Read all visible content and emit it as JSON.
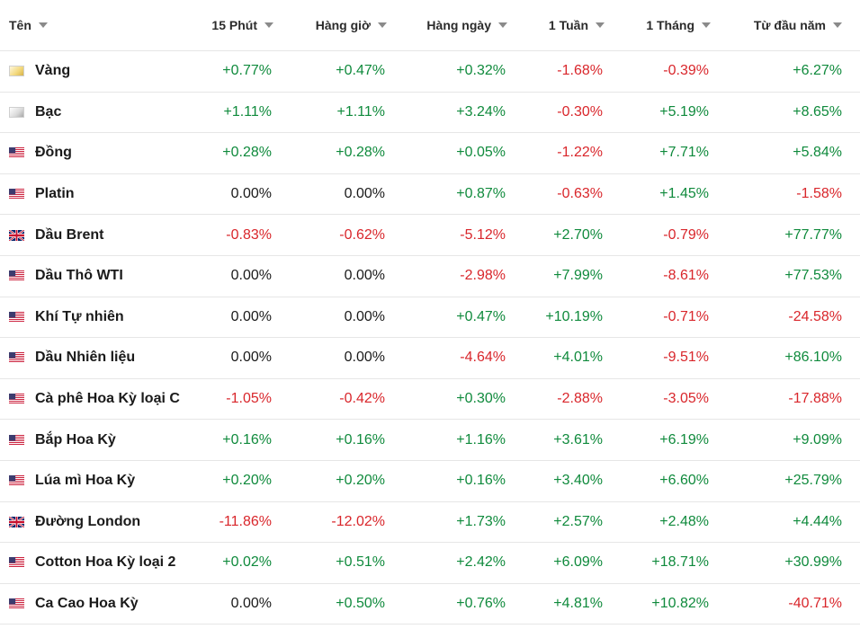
{
  "table": {
    "headers": [
      "Tên",
      "15 Phút",
      "Hàng giờ",
      "Hàng ngày",
      "1 Tuần",
      "1 Tháng",
      "Từ đầu năm"
    ],
    "colors": {
      "positive": "#0f8a3c",
      "negative": "#d9262b",
      "neutral": "#1a1a1a"
    },
    "rows": [
      {
        "name": "Vàng",
        "icon": "gold-icon",
        "values": [
          "+0.77%",
          "+0.47%",
          "+0.32%",
          "-1.68%",
          "-0.39%",
          "+6.27%"
        ]
      },
      {
        "name": "Bạc",
        "icon": "silver-icon",
        "values": [
          "+1.11%",
          "+1.11%",
          "+3.24%",
          "-0.30%",
          "+5.19%",
          "+8.65%"
        ]
      },
      {
        "name": "Đồng",
        "icon": "us-flag-icon",
        "values": [
          "+0.28%",
          "+0.28%",
          "+0.05%",
          "-1.22%",
          "+7.71%",
          "+5.84%"
        ]
      },
      {
        "name": "Platin",
        "icon": "us-flag-icon",
        "values": [
          "0.00%",
          "0.00%",
          "+0.87%",
          "-0.63%",
          "+1.45%",
          "-1.58%"
        ]
      },
      {
        "name": "Dầu Brent",
        "icon": "uk-flag-icon",
        "values": [
          "-0.83%",
          "-0.62%",
          "-5.12%",
          "+2.70%",
          "-0.79%",
          "+77.77%"
        ]
      },
      {
        "name": "Dầu Thô WTI",
        "icon": "us-flag-icon",
        "values": [
          "0.00%",
          "0.00%",
          "-2.98%",
          "+7.99%",
          "-8.61%",
          "+77.53%"
        ]
      },
      {
        "name": "Khí Tự nhiên",
        "icon": "us-flag-icon",
        "values": [
          "0.00%",
          "0.00%",
          "+0.47%",
          "+10.19%",
          "-0.71%",
          "-24.58%"
        ]
      },
      {
        "name": "Dầu Nhiên liệu",
        "icon": "us-flag-icon",
        "values": [
          "0.00%",
          "0.00%",
          "-4.64%",
          "+4.01%",
          "-9.51%",
          "+86.10%"
        ]
      },
      {
        "name": "Cà phê Hoa Kỳ loại C",
        "icon": "us-flag-icon",
        "values": [
          "-1.05%",
          "-0.42%",
          "+0.30%",
          "-2.88%",
          "-3.05%",
          "-17.88%"
        ]
      },
      {
        "name": "Bắp Hoa Kỳ",
        "icon": "us-flag-icon",
        "values": [
          "+0.16%",
          "+0.16%",
          "+1.16%",
          "+3.61%",
          "+6.19%",
          "+9.09%"
        ]
      },
      {
        "name": "Lúa mì Hoa Kỳ",
        "icon": "us-flag-icon",
        "values": [
          "+0.20%",
          "+0.20%",
          "+0.16%",
          "+3.40%",
          "+6.60%",
          "+25.79%"
        ]
      },
      {
        "name": "Đường London",
        "icon": "uk-flag-icon",
        "values": [
          "-11.86%",
          "-12.02%",
          "+1.73%",
          "+2.57%",
          "+2.48%",
          "+4.44%"
        ]
      },
      {
        "name": "Cotton Hoa Kỳ loại 2",
        "icon": "us-flag-icon",
        "values": [
          "+0.02%",
          "+0.51%",
          "+2.42%",
          "+6.09%",
          "+18.71%",
          "+30.99%"
        ]
      },
      {
        "name": "Ca Cao Hoa Kỳ",
        "icon": "us-flag-icon",
        "values": [
          "0.00%",
          "+0.50%",
          "+0.76%",
          "+4.81%",
          "+10.82%",
          "-40.71%"
        ]
      }
    ]
  }
}
